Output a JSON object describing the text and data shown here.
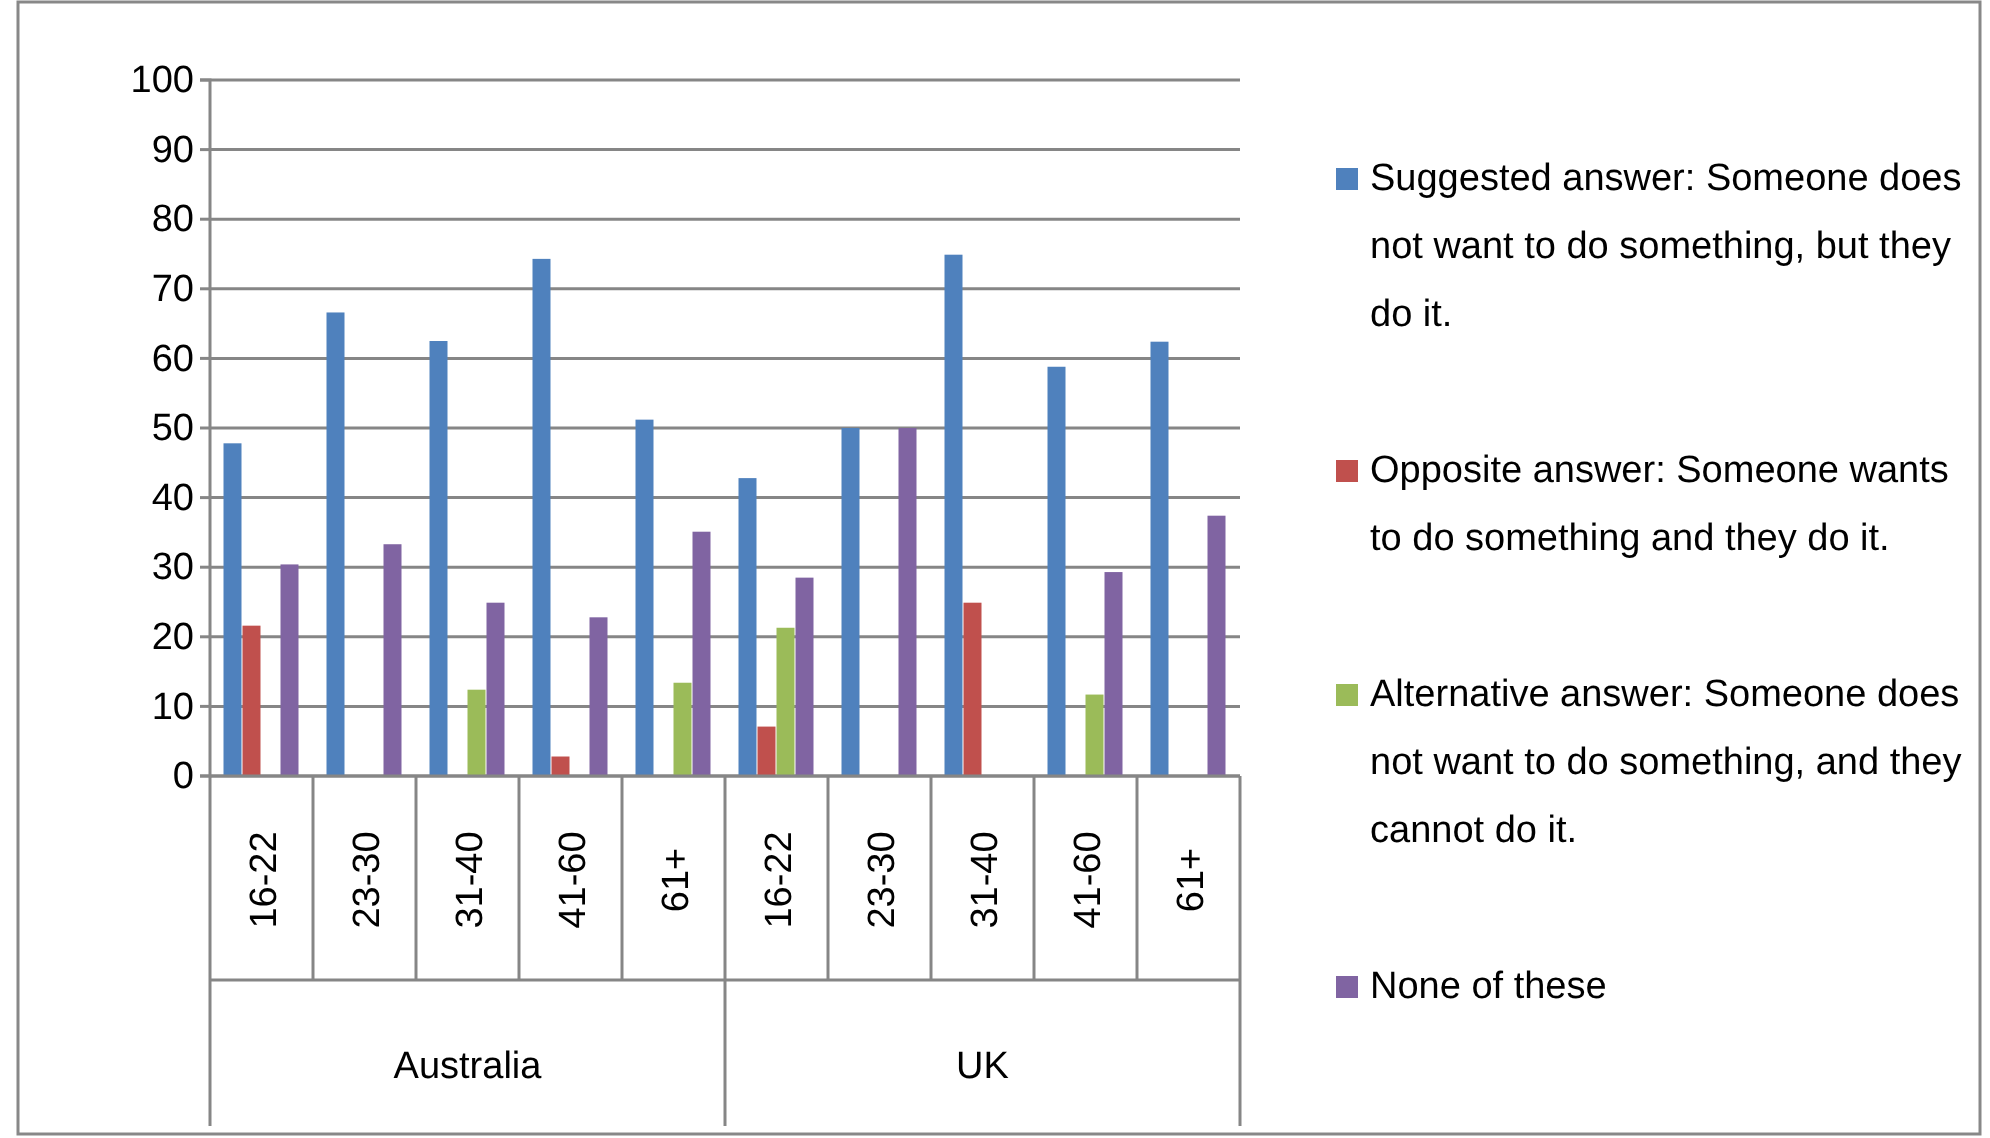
{
  "chart_data": {
    "type": "bar",
    "categories": [
      "16-22",
      "23-30",
      "31-40",
      "41-60",
      "61+",
      "16-22",
      "23-30",
      "31-40",
      "41-60",
      "61+"
    ],
    "annotations": [
      "Australia",
      "UK"
    ],
    "series": [
      {
        "name": "Suggested answer: Someone does not want to do something, but they do it.",
        "color": "#4f81bd",
        "values": [
          47.8,
          66.6,
          62.5,
          74.3,
          51.2,
          42.8,
          50,
          74.9,
          58.8,
          62.4
        ]
      },
      {
        "name": "Opposite answer: Someone wants to do something and they do it.",
        "color": "#c0504d",
        "values": [
          21.6,
          null,
          null,
          2.8,
          null,
          7.1,
          null,
          24.9,
          null,
          null
        ]
      },
      {
        "name": "Alternative answer: Someone does not want to do something, and they cannot do it.",
        "color": "#9bbb59",
        "values": [
          null,
          null,
          12.4,
          null,
          13.4,
          21.3,
          null,
          null,
          11.7,
          null
        ]
      },
      {
        "name": "None of these",
        "color": "#8064a2",
        "values": [
          30.4,
          33.3,
          24.9,
          22.8,
          35.1,
          28.5,
          50,
          null,
          29.3,
          37.4
        ]
      }
    ],
    "ylim": [
      0,
      100
    ],
    "yticks": [
      0,
      10,
      20,
      30,
      40,
      50,
      60,
      70,
      80,
      90,
      100
    ],
    "grid": "y",
    "legend": "right"
  }
}
